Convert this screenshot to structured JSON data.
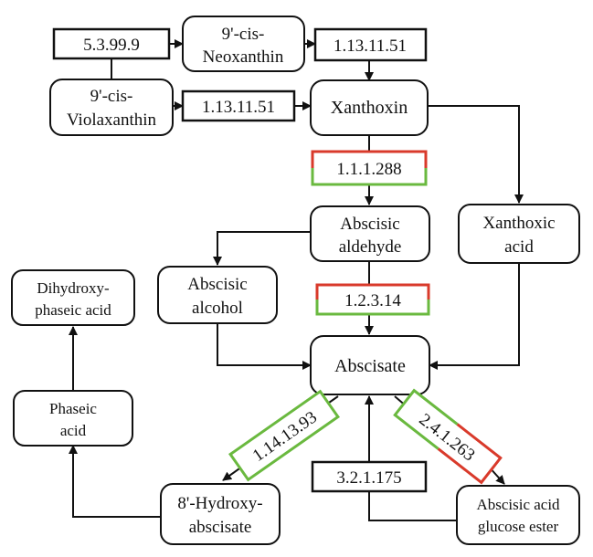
{
  "nodes": {
    "neoxanthin": [
      "9'-cis-",
      "Neoxanthin"
    ],
    "violaxanthin": [
      "9'-cis-",
      "Violaxanthin"
    ],
    "xanthoxin": [
      "Xanthoxin"
    ],
    "abscisic_aldehyde": [
      "Abscisic",
      "aldehyde"
    ],
    "xanthoxic_acid": [
      "Xanthoxic",
      "acid"
    ],
    "abscisic_alcohol": [
      "Abscisic",
      "alcohol"
    ],
    "abscisate": [
      "Abscisate"
    ],
    "dihydroxy_phaseic_acid": [
      "Dihydroxy-",
      "phaseic acid"
    ],
    "phaseic_acid": [
      "Phaseic",
      "acid"
    ],
    "hydroxy_abscisate": [
      "8'-Hydroxy-",
      "abscisate"
    ],
    "glucose_ester": [
      "Abscisic acid",
      "glucose ester"
    ]
  },
  "enzymes": {
    "e_5_3_99_9": "5.3.99.9",
    "e_1_13_11_51_top": "1.13.11.51",
    "e_1_13_11_51_mid": "1.13.11.51",
    "e_1_1_1_288": "1.1.1.288",
    "e_1_2_3_14": "1.2.3.14",
    "e_1_14_13_93": "1.14.13.93",
    "e_2_4_1_263": "2.4.1.263",
    "e_3_2_1_175": "3.2.1.175"
  },
  "colors": {
    "up_regulated": "#d93a2b",
    "down_regulated": "#6ab93f",
    "text": "#111111"
  }
}
